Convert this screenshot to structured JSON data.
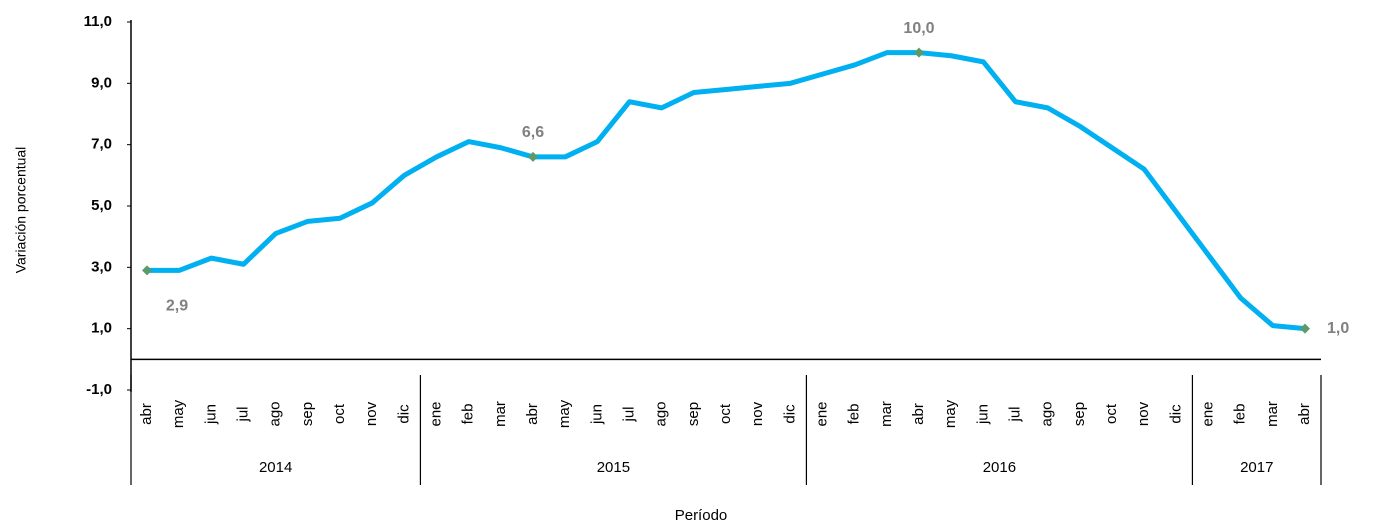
{
  "chart_data": {
    "type": "line",
    "x_label": "Período",
    "y_label": "Variación porcentual",
    "groups": [
      {
        "name": "2014",
        "categories": [
          "abr",
          "may",
          "jun",
          "jul",
          "ago",
          "sep",
          "oct",
          "nov",
          "dic"
        ]
      },
      {
        "name": "2015",
        "categories": [
          "ene",
          "feb",
          "mar",
          "abr",
          "may",
          "jun",
          "jul",
          "ago",
          "sep",
          "oct",
          "nov",
          "dic"
        ]
      },
      {
        "name": "2016",
        "categories": [
          "ene",
          "feb",
          "mar",
          "abr",
          "may",
          "jun",
          "jul",
          "ago",
          "sep",
          "oct",
          "nov",
          "dic"
        ]
      },
      {
        "name": "2017",
        "categories": [
          "ene",
          "feb",
          "mar",
          "abr"
        ]
      }
    ],
    "values": [
      2.9,
      2.9,
      3.3,
      3.1,
      4.1,
      4.5,
      4.6,
      5.1,
      6.0,
      6.6,
      7.1,
      6.9,
      6.6,
      6.6,
      7.1,
      8.4,
      8.2,
      8.7,
      8.8,
      8.9,
      9.0,
      9.3,
      9.6,
      10.0,
      10.0,
      9.9,
      9.7,
      8.4,
      8.2,
      7.6,
      6.9,
      6.2,
      4.8,
      3.4,
      2.0,
      1.1,
      1.0
    ],
    "value_labels": [
      "2,9",
      null,
      null,
      null,
      null,
      null,
      null,
      null,
      null,
      null,
      null,
      null,
      "6,6",
      null,
      null,
      null,
      null,
      null,
      null,
      null,
      null,
      null,
      null,
      null,
      "10,0",
      null,
      null,
      null,
      null,
      null,
      null,
      null,
      null,
      null,
      null,
      null,
      "1,0"
    ],
    "color": "#00b0f0",
    "marker_color": "#5b9b6b",
    "ylim": [
      -1,
      11
    ],
    "yticks": [
      {
        "value": -1,
        "label": "-1,0"
      },
      {
        "value": 1,
        "label": "1,0"
      },
      {
        "value": 3,
        "label": "3,0"
      },
      {
        "value": 5,
        "label": "5,0"
      },
      {
        "value": 7,
        "label": "7,0"
      },
      {
        "value": 9,
        "label": "9,0"
      },
      {
        "value": 11,
        "label": "11,0"
      }
    ]
  }
}
